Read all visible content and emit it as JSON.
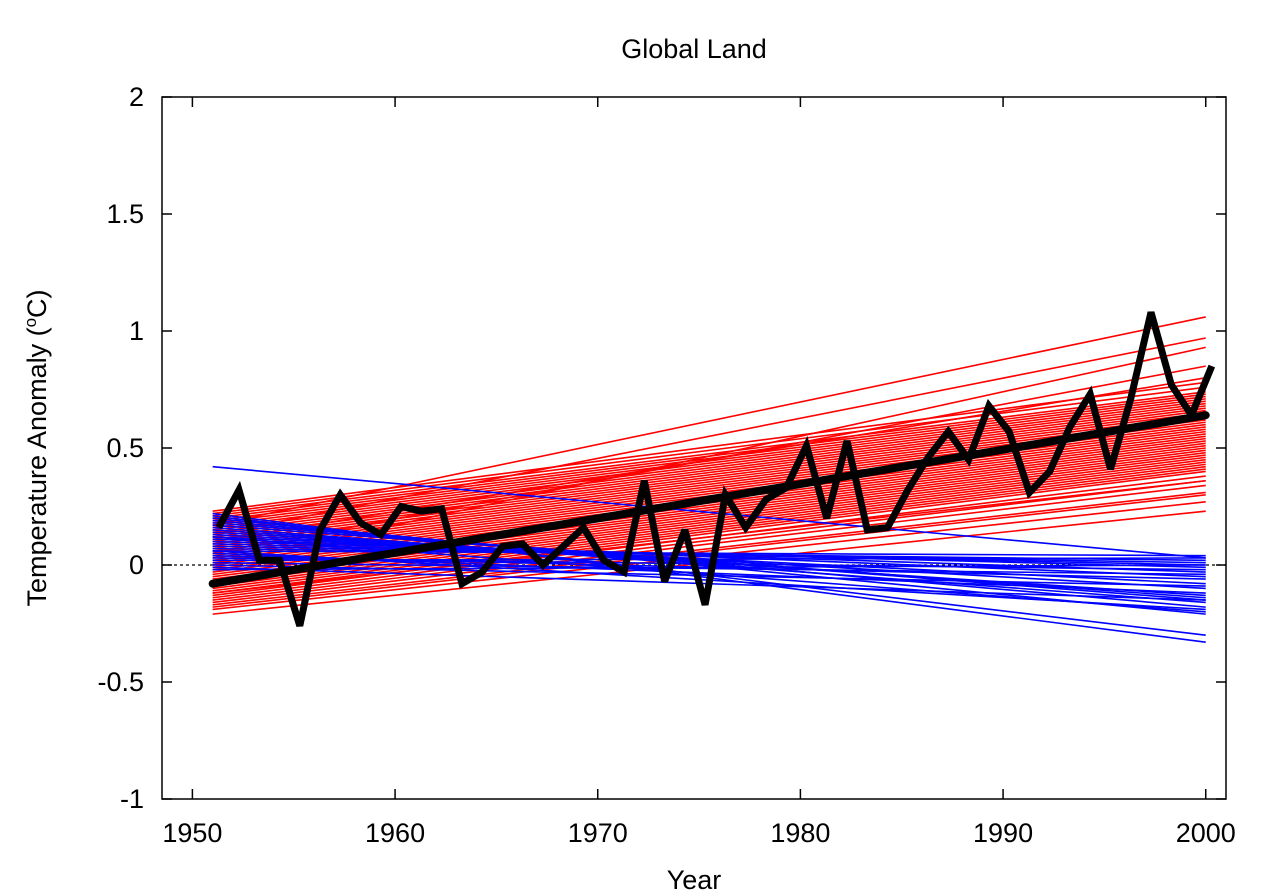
{
  "chart_data": {
    "type": "line",
    "title": "Global Land",
    "xlabel": "Year",
    "ylabel_main": "Temperature Anomaly (",
    "ylabel_sup": "o",
    "ylabel_tail": "C)",
    "xlim": [
      1948.5,
      2001
    ],
    "ylim": [
      -1,
      2
    ],
    "x_ticks": [
      1950,
      1960,
      1970,
      1980,
      1990,
      2000
    ],
    "x_tick_labels": [
      "1950",
      "1960",
      "1970",
      "1980",
      "1990",
      "2000"
    ],
    "y_ticks": [
      -1,
      -0.5,
      0,
      0.5,
      1,
      1.5,
      2
    ],
    "y_tick_labels": [
      "-1",
      "-0.5",
      "0",
      "0.5",
      "1",
      "1.5",
      "2"
    ],
    "grid": false,
    "legend": "none",
    "colors": {
      "warming_trends": "#ff0000",
      "cooling_trends": "#0000ff",
      "observed": "#000000",
      "zero_line": "#000000"
    },
    "trend_line_x": [
      1951,
      2000
    ],
    "warming_trends": [
      [
        -0.21,
        0.23
      ],
      [
        -0.19,
        0.27
      ],
      [
        -0.17,
        0.31
      ],
      [
        -0.16,
        0.34
      ],
      [
        -0.15,
        0.36
      ],
      [
        -0.14,
        0.38
      ],
      [
        -0.13,
        0.4
      ],
      [
        -0.12,
        0.41
      ],
      [
        -0.11,
        0.42
      ],
      [
        -0.1,
        0.43
      ],
      [
        -0.09,
        0.44
      ],
      [
        -0.08,
        0.45
      ],
      [
        -0.07,
        0.46
      ],
      [
        -0.06,
        0.47
      ],
      [
        -0.05,
        0.48
      ],
      [
        -0.04,
        0.49
      ],
      [
        -0.03,
        0.5
      ],
      [
        -0.02,
        0.51
      ],
      [
        -0.01,
        0.52
      ],
      [
        0.0,
        0.53
      ],
      [
        0.01,
        0.54
      ],
      [
        0.02,
        0.55
      ],
      [
        0.03,
        0.56
      ],
      [
        0.04,
        0.57
      ],
      [
        0.05,
        0.58
      ],
      [
        0.06,
        0.59
      ],
      [
        0.07,
        0.6
      ],
      [
        0.08,
        0.61
      ],
      [
        0.09,
        0.62
      ],
      [
        0.1,
        0.63
      ],
      [
        0.11,
        0.64
      ],
      [
        0.12,
        0.65
      ],
      [
        0.13,
        0.66
      ],
      [
        0.14,
        0.67
      ],
      [
        0.15,
        0.68
      ],
      [
        0.16,
        0.69
      ],
      [
        0.17,
        0.7
      ],
      [
        0.18,
        0.71
      ],
      [
        0.19,
        0.72
      ],
      [
        0.2,
        0.73
      ],
      [
        0.21,
        0.74
      ],
      [
        0.22,
        0.76
      ],
      [
        0.23,
        0.78
      ],
      [
        0.1,
        0.8
      ],
      [
        0.05,
        0.85
      ],
      [
        0.0,
        0.93
      ],
      [
        0.13,
        0.97
      ],
      [
        0.17,
        1.06
      ],
      [
        -0.12,
        0.36
      ],
      [
        -0.18,
        0.3
      ]
    ],
    "cooling_trends": [
      [
        0.42,
        0.03
      ],
      [
        0.22,
        -0.33
      ],
      [
        0.21,
        -0.3
      ],
      [
        0.2,
        -0.21
      ],
      [
        0.19,
        -0.18
      ],
      [
        0.18,
        -0.15
      ],
      [
        0.17,
        -0.14
      ],
      [
        0.16,
        -0.16
      ],
      [
        0.15,
        -0.13
      ],
      [
        0.14,
        -0.1
      ],
      [
        0.13,
        -0.08
      ],
      [
        0.12,
        -0.05
      ],
      [
        0.11,
        -0.03
      ],
      [
        0.1,
        -0.01
      ],
      [
        0.09,
        0.0
      ],
      [
        0.08,
        0.01
      ],
      [
        0.07,
        0.02
      ],
      [
        0.06,
        -0.19
      ],
      [
        0.05,
        -0.12
      ],
      [
        0.04,
        -0.06
      ],
      [
        0.03,
        -0.02
      ],
      [
        0.02,
        0.03
      ],
      [
        0.01,
        -0.04
      ],
      [
        0.0,
        -0.09
      ],
      [
        -0.01,
        -0.15
      ],
      [
        -0.02,
        0.0
      ],
      [
        0.06,
        0.04
      ],
      [
        0.12,
        -0.2
      ]
    ],
    "observed_trend": [
      -0.08,
      0.64
    ],
    "observed_x": [
      1951.3,
      1952.3,
      1953.3,
      1954.3,
      1955.3,
      1956.3,
      1957.3,
      1958.3,
      1959.3,
      1960.3,
      1961.3,
      1962.3,
      1963.3,
      1964.3,
      1965.3,
      1966.3,
      1967.3,
      1968.3,
      1969.3,
      1970.3,
      1971.3,
      1972.3,
      1973.3,
      1974.3,
      1975.3,
      1976.3,
      1977.3,
      1978.3,
      1979.3,
      1980.3,
      1981.3,
      1982.3,
      1983.3,
      1984.3,
      1985.3,
      1986.3,
      1987.3,
      1988.3,
      1989.3,
      1990.3,
      1991.3,
      1992.3,
      1993.3,
      1994.3,
      1995.3,
      1996.3,
      1997.3,
      1998.3,
      1999.3,
      2000.3
    ],
    "observed_y": [
      0.16,
      0.32,
      0.02,
      0.02,
      -0.26,
      0.15,
      0.3,
      0.18,
      0.13,
      0.25,
      0.23,
      0.24,
      -0.08,
      -0.03,
      0.08,
      0.09,
      0.0,
      0.08,
      0.16,
      0.02,
      -0.03,
      0.36,
      -0.07,
      0.15,
      -0.17,
      0.3,
      0.16,
      0.28,
      0.33,
      0.51,
      0.2,
      0.53,
      0.15,
      0.16,
      0.32,
      0.46,
      0.57,
      0.45,
      0.68,
      0.57,
      0.31,
      0.4,
      0.59,
      0.73,
      0.41,
      0.71,
      1.08,
      0.77,
      0.64,
      0.85
    ]
  }
}
